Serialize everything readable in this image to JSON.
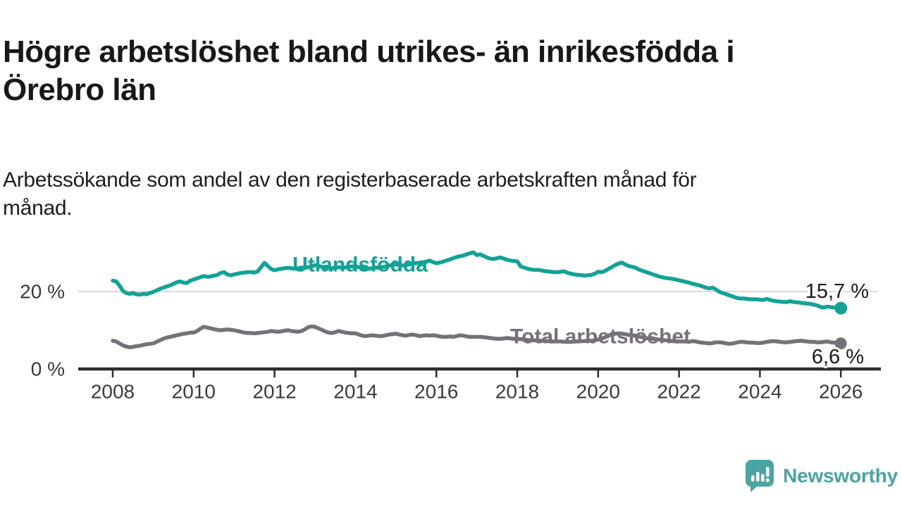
{
  "chart_data": {
    "type": "line",
    "title": "Högre arbetslöshet bland utrikes- än inrikesfödda i Örebro län",
    "subtitle": "Arbetssökande som andel av den registerbaserade arbetskraften månad för månad.",
    "x_unit": "month",
    "x_start": "2008-01",
    "x_end": "2026-01",
    "ylim": [
      0,
      31.5
    ],
    "grid": "single horizontal gridline at 20 %",
    "legend_position": "inline labels on lines",
    "axis_color": "#2d2d2d",
    "grid_color": "#d9d9d9",
    "x_ticks": [
      {
        "value": 2008,
        "label": "2008"
      },
      {
        "value": 2010,
        "label": "2010"
      },
      {
        "value": 2012,
        "label": "2012"
      },
      {
        "value": 2014,
        "label": "2014"
      },
      {
        "value": 2016,
        "label": "2016"
      },
      {
        "value": 2018,
        "label": "2018"
      },
      {
        "value": 2020,
        "label": "2020"
      },
      {
        "value": 2022,
        "label": "2022"
      },
      {
        "value": 2024,
        "label": "2024"
      },
      {
        "value": 2026,
        "label": "2026"
      }
    ],
    "y_ticks": [
      {
        "value": 0,
        "label": "0 %"
      },
      {
        "value": 20,
        "label": "20 %"
      }
    ],
    "series": [
      {
        "name": "Utlandsfödda",
        "color": "#12A296",
        "end_label": "15,7 %",
        "end_value": 15.7,
        "values": [
          22.8,
          22.6,
          21.5,
          20.2,
          19.6,
          19.4,
          19.6,
          19.3,
          19.2,
          19.4,
          19.3,
          19.6,
          19.9,
          20.3,
          20.7,
          21.0,
          21.3,
          21.6,
          22.0,
          22.4,
          22.6,
          22.3,
          22.2,
          22.8,
          23.1,
          23.4,
          23.7,
          24.0,
          23.8,
          23.9,
          24.1,
          24.3,
          24.8,
          25.0,
          24.4,
          24.2,
          24.4,
          24.6,
          24.8,
          24.9,
          25.0,
          25.0,
          24.9,
          25.2,
          26.3,
          27.4,
          26.6,
          25.8,
          25.5,
          25.7,
          25.9,
          26.0,
          26.1,
          26.0,
          25.9,
          26.0,
          26.2,
          26.1,
          26.3,
          26.5,
          26.8,
          26.6,
          26.4,
          26.2,
          26.1,
          26.0,
          26.2,
          26.3,
          26.1,
          26.2,
          26.4,
          26.5,
          26.5,
          26.3,
          26.1,
          26.0,
          25.9,
          26.0,
          26.2,
          26.1,
          26.3,
          26.5,
          26.7,
          26.9,
          27.0,
          26.9,
          26.7,
          26.8,
          27.0,
          27.2,
          27.4,
          27.3,
          27.5,
          27.7,
          28.0,
          27.6,
          27.3,
          27.5,
          27.7,
          28.0,
          28.3,
          28.6,
          28.9,
          29.1,
          29.3,
          29.6,
          29.9,
          30.1,
          29.4,
          29.6,
          29.2,
          28.8,
          28.5,
          28.4,
          28.6,
          28.8,
          28.5,
          28.2,
          28.0,
          27.9,
          27.8,
          26.5,
          26.2,
          25.9,
          25.7,
          25.6,
          25.6,
          25.5,
          25.3,
          25.2,
          25.1,
          25.0,
          25.0,
          25.1,
          25.2,
          24.8,
          24.6,
          24.4,
          24.3,
          24.2,
          24.1,
          24.2,
          24.3,
          24.6,
          25.1,
          25.0,
          25.3,
          25.8,
          26.3,
          26.8,
          27.2,
          27.5,
          27.0,
          26.6,
          26.4,
          26.2,
          25.7,
          25.4,
          25.1,
          24.8,
          24.5,
          24.2,
          23.9,
          23.7,
          23.5,
          23.4,
          23.3,
          23.1,
          22.9,
          22.7,
          22.5,
          22.3,
          22.0,
          21.8,
          21.6,
          21.3,
          21.0,
          20.8,
          21.0,
          20.5,
          19.9,
          19.6,
          19.3,
          19.0,
          18.7,
          18.4,
          18.2,
          18.2,
          18.1,
          18.0,
          18.0,
          18.0,
          17.9,
          17.8,
          18.1,
          17.8,
          17.6,
          17.5,
          17.4,
          17.3,
          17.3,
          17.5,
          17.3,
          17.2,
          17.1,
          17.0,
          16.9,
          16.8,
          16.6,
          16.4,
          16.0,
          15.9,
          16.1,
          16.0,
          15.9,
          15.8,
          15.7
        ]
      },
      {
        "name": "Total arbetslöshet",
        "color": "#767179",
        "end_label": "6,6 %",
        "end_value": 6.6,
        "values": [
          7.3,
          7.1,
          6.6,
          6.1,
          5.8,
          5.6,
          5.7,
          5.9,
          6.0,
          6.2,
          6.4,
          6.5,
          6.6,
          7.0,
          7.4,
          7.8,
          8.1,
          8.3,
          8.5,
          8.7,
          8.9,
          9.1,
          9.2,
          9.4,
          9.4,
          9.8,
          10.4,
          10.9,
          10.7,
          10.5,
          10.3,
          10.1,
          10.0,
          10.1,
          10.2,
          10.1,
          10.0,
          9.8,
          9.6,
          9.4,
          9.3,
          9.3,
          9.2,
          9.3,
          9.4,
          9.5,
          9.6,
          9.8,
          9.7,
          9.6,
          9.7,
          9.9,
          10.0,
          9.8,
          9.7,
          9.6,
          9.8,
          10.2,
          10.8,
          11.0,
          10.9,
          10.5,
          10.1,
          9.7,
          9.4,
          9.3,
          9.5,
          9.8,
          9.6,
          9.4,
          9.3,
          9.2,
          9.2,
          8.9,
          8.6,
          8.5,
          8.6,
          8.7,
          8.6,
          8.5,
          8.5,
          8.7,
          8.9,
          9.0,
          9.1,
          8.9,
          8.7,
          8.6,
          8.8,
          8.9,
          8.7,
          8.5,
          8.6,
          8.7,
          8.6,
          8.7,
          8.6,
          8.4,
          8.3,
          8.3,
          8.4,
          8.3,
          8.5,
          8.7,
          8.6,
          8.4,
          8.3,
          8.3,
          8.3,
          8.3,
          8.2,
          8.1,
          8.0,
          7.9,
          7.8,
          7.8,
          7.9,
          8.0,
          7.9,
          7.8,
          7.8,
          7.7,
          7.6,
          7.5,
          7.4,
          7.4,
          7.3,
          7.3,
          7.2,
          7.2,
          7.1,
          7.1,
          7.1,
          7.1,
          7.0,
          7.0,
          7.0,
          7.1,
          7.1,
          7.2,
          7.2,
          7.3,
          7.3,
          7.4,
          7.6,
          7.8,
          8.2,
          8.6,
          8.9,
          9.1,
          9.2,
          9.1,
          9.0,
          8.8,
          8.7,
          8.6,
          8.4,
          8.2,
          8.0,
          7.9,
          7.8,
          7.7,
          7.6,
          7.5,
          7.4,
          7.3,
          7.2,
          7.1,
          7.1,
          7.1,
          7.1,
          7.0,
          7.2,
          7.1,
          6.9,
          6.8,
          6.7,
          6.6,
          6.7,
          6.9,
          6.9,
          6.8,
          6.6,
          6.5,
          6.6,
          6.8,
          7.0,
          7.0,
          6.9,
          6.8,
          6.8,
          6.7,
          6.7,
          6.8,
          7.0,
          7.1,
          7.2,
          7.1,
          7.0,
          6.9,
          6.9,
          7.0,
          7.1,
          7.2,
          7.3,
          7.2,
          7.1,
          7.0,
          7.0,
          6.9,
          6.9,
          7.0,
          7.1,
          6.9,
          6.8,
          6.7,
          6.6
        ]
      }
    ]
  },
  "branding": {
    "logo_text": "Newsworthy",
    "logo_color": "#4AA49F"
  }
}
